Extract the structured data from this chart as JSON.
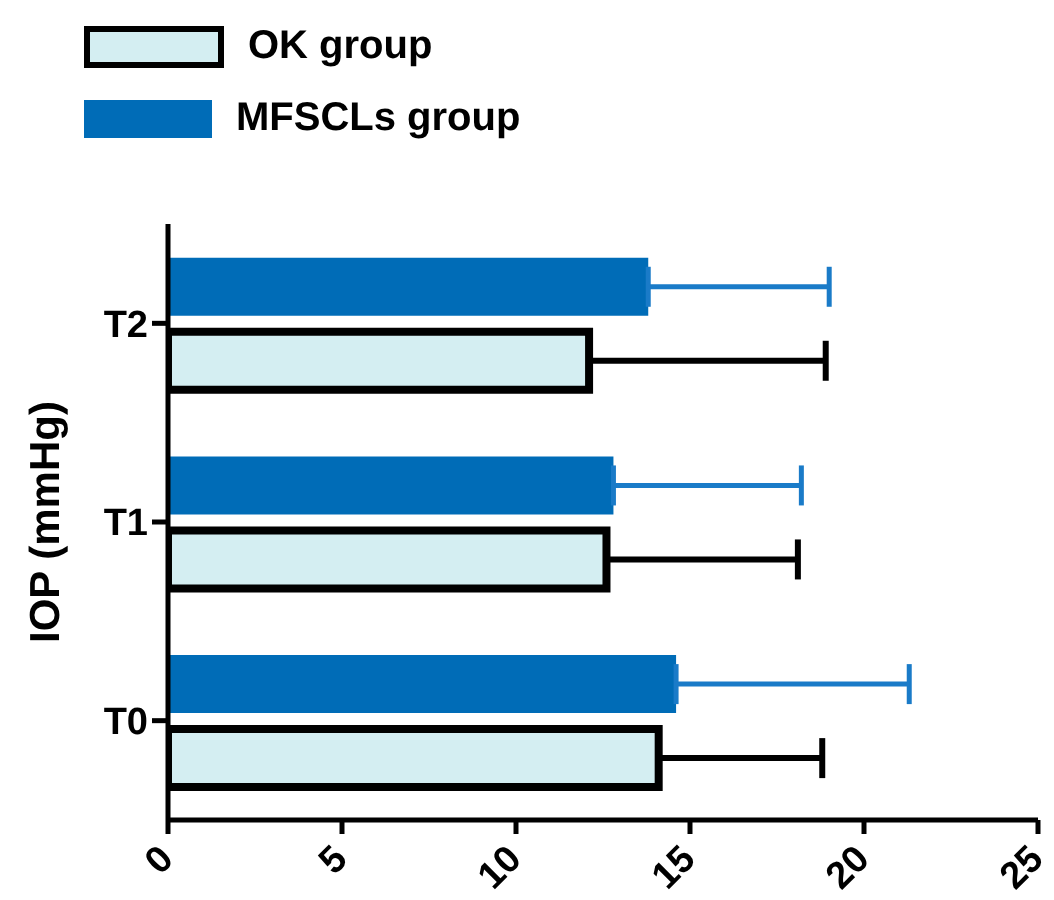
{
  "chart_data": {
    "type": "bar",
    "orientation": "horizontal",
    "ylabel": "IOP (mmHg)",
    "categories": [
      "T2",
      "T1",
      "T0"
    ],
    "series": [
      {
        "name": "OK group",
        "color": "#d4eef2",
        "values": [
          12.1,
          12.6,
          14.1
        ],
        "errors": [
          [
            12.1,
            18.9
          ],
          [
            12.6,
            18.1
          ],
          [
            14.1,
            18.8
          ]
        ]
      },
      {
        "name": "MFSCLs group",
        "color": "#006cb7",
        "values": [
          13.8,
          12.8,
          14.6
        ],
        "errors": [
          [
            13.8,
            19.0
          ],
          [
            12.8,
            18.2
          ],
          [
            14.6,
            21.3
          ]
        ]
      }
    ],
    "xlim": [
      0,
      25
    ],
    "xticks": [
      0,
      5,
      10,
      15,
      20,
      25
    ],
    "legend": "top left"
  }
}
